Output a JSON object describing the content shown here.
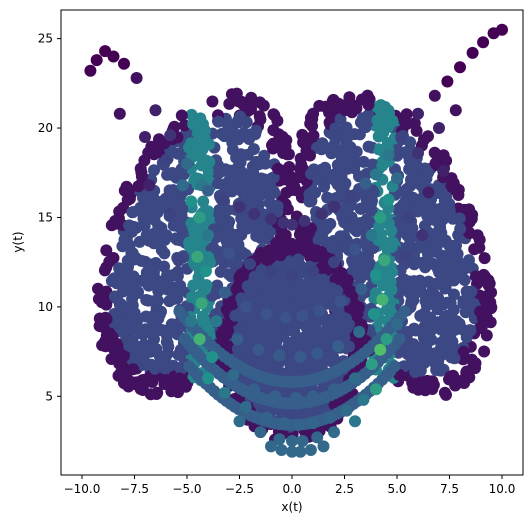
{
  "chart_data": {
    "type": "scatter",
    "title": "",
    "xlabel": "x(t)",
    "ylabel": "y(t)",
    "xlim": [
      -11.0,
      11.0
    ],
    "ylim": [
      0.6,
      26.6
    ],
    "xticks": [
      -10.0,
      -7.5,
      -5.0,
      -2.5,
      0.0,
      2.5,
      5.0,
      7.5,
      10.0
    ],
    "xtick_labels": [
      "−10.0",
      "−7.5",
      "−5.0",
      "−2.5",
      "0.0",
      "2.5",
      "5.0",
      "7.5",
      "10.0"
    ],
    "yticks": [
      5,
      10,
      15,
      20,
      25
    ],
    "ytick_labels": [
      "5",
      "10",
      "15",
      "20",
      "25"
    ],
    "grid": false,
    "legend": "none",
    "colormap": "viridis",
    "color_range": [
      "#440154",
      "#3b528b",
      "#21918c",
      "#5ec962"
    ],
    "marker": "circle",
    "series": [
      {
        "x": [
          -9.6,
          -9.3,
          -8.9,
          -8.5,
          -8.0,
          -7.4,
          -6.5,
          -5.8,
          -5.0,
          -4.6,
          -4.3,
          -4.0,
          -3.3,
          -2.5,
          -1.8,
          -1.0,
          -0.4,
          0.0,
          0.6,
          1.4,
          2.0,
          2.8,
          3.5,
          4.0,
          4.3,
          4.6,
          5.2,
          6.0,
          6.8,
          7.4,
          8.0,
          8.6,
          9.1,
          9.6,
          10.0,
          -8.2,
          -7.0,
          -6.0,
          -5.2,
          -4.8,
          -4.4,
          -4.0,
          -3.0,
          -2.0,
          -1.0,
          0.0,
          1.0,
          2.0,
          3.0,
          3.8,
          4.2,
          4.6,
          5.0,
          6.0,
          7.0,
          7.8,
          -6.8,
          -5.8,
          -4.9,
          -4.5,
          -4.1,
          -3.2,
          -2.2,
          -1.2,
          -0.3,
          0.5,
          1.3,
          2.3,
          3.3,
          4.0,
          4.4,
          4.8,
          5.6,
          6.5,
          7.2,
          -5.4,
          -4.7,
          -4.3,
          -3.6,
          -2.6,
          -1.6,
          -0.6,
          0.4,
          1.2,
          2.2,
          3.2,
          3.9,
          4.3,
          4.7,
          5.4,
          6.2,
          -4.8,
          -4.4,
          -3.8,
          -2.8,
          -1.8,
          -0.8,
          0.2,
          1.0,
          2.0,
          3.0,
          3.8,
          4.2,
          4.5,
          5.0,
          -4.0,
          -3.2,
          -2.2,
          -1.2,
          -0.4,
          0.3,
          1.0,
          1.8,
          2.6,
          3.4,
          4.0,
          -2.5,
          -1.5,
          -0.6,
          0.0,
          0.5,
          1.2,
          2.0,
          3.0,
          -1.0,
          -0.5,
          0.0,
          0.4,
          0.9,
          1.5
        ],
        "y": [
          23.2,
          23.8,
          24.3,
          24.0,
          23.6,
          22.8,
          21.0,
          19.6,
          18.0,
          17.2,
          16.8,
          16.5,
          16.0,
          15.6,
          15.2,
          14.9,
          14.7,
          14.6,
          14.8,
          15.2,
          15.6,
          16.2,
          16.9,
          17.4,
          17.9,
          18.5,
          19.5,
          20.8,
          21.8,
          22.6,
          23.4,
          24.2,
          24.8,
          25.3,
          25.5,
          20.8,
          19.5,
          18.2,
          16.8,
          15.9,
          15.0,
          14.0,
          13.0,
          12.4,
          12.0,
          11.8,
          12.0,
          12.5,
          13.2,
          14.0,
          15.0,
          16.0,
          17.2,
          18.6,
          20.0,
          21.0,
          16.8,
          15.2,
          13.6,
          12.8,
          12.0,
          10.8,
          10.0,
          9.6,
          9.4,
          9.5,
          9.8,
          10.3,
          11.0,
          11.8,
          12.6,
          13.6,
          15.0,
          16.4,
          17.6,
          12.6,
          11.2,
          10.2,
          9.2,
          8.2,
          7.6,
          7.3,
          7.2,
          7.4,
          7.8,
          8.6,
          9.6,
          10.4,
          11.4,
          12.8,
          14.0,
          9.2,
          8.2,
          7.2,
          6.2,
          5.4,
          5.0,
          4.9,
          5.0,
          5.4,
          6.0,
          6.8,
          7.6,
          8.2,
          9.0,
          6.0,
          5.2,
          4.4,
          3.8,
          3.5,
          3.4,
          3.5,
          3.8,
          4.2,
          4.8,
          5.4,
          3.6,
          3.0,
          2.6,
          2.5,
          2.5,
          2.7,
          3.0,
          3.6,
          2.2,
          2.0,
          1.9,
          1.9,
          2.0,
          2.2
        ],
        "color_value": [
          0.0,
          0.0,
          0.0,
          0.0,
          0.0,
          0.05,
          0.1,
          0.15,
          0.35,
          0.45,
          0.4,
          0.3,
          0.2,
          0.15,
          0.15,
          0.15,
          0.15,
          0.15,
          0.15,
          0.15,
          0.15,
          0.2,
          0.3,
          0.4,
          0.45,
          0.4,
          0.2,
          0.1,
          0.05,
          0.0,
          0.0,
          0.0,
          0.0,
          0.0,
          0.0,
          0.05,
          0.1,
          0.2,
          0.35,
          0.5,
          0.55,
          0.4,
          0.25,
          0.2,
          0.2,
          0.2,
          0.2,
          0.2,
          0.25,
          0.4,
          0.55,
          0.5,
          0.35,
          0.15,
          0.1,
          0.05,
          0.1,
          0.2,
          0.45,
          0.6,
          0.5,
          0.3,
          0.25,
          0.25,
          0.25,
          0.25,
          0.25,
          0.25,
          0.3,
          0.5,
          0.6,
          0.45,
          0.2,
          0.1,
          0.1,
          0.2,
          0.45,
          0.6,
          0.4,
          0.3,
          0.28,
          0.28,
          0.28,
          0.28,
          0.3,
          0.35,
          0.5,
          0.65,
          0.45,
          0.2,
          0.15,
          0.4,
          0.65,
          0.5,
          0.35,
          0.3,
          0.3,
          0.3,
          0.3,
          0.3,
          0.35,
          0.55,
          0.7,
          0.55,
          0.35,
          0.5,
          0.4,
          0.35,
          0.32,
          0.32,
          0.32,
          0.32,
          0.32,
          0.35,
          0.4,
          0.55,
          0.35,
          0.33,
          0.33,
          0.33,
          0.33,
          0.33,
          0.35,
          0.4,
          0.34,
          0.34,
          0.34,
          0.34,
          0.34,
          0.34
        ]
      }
    ]
  }
}
